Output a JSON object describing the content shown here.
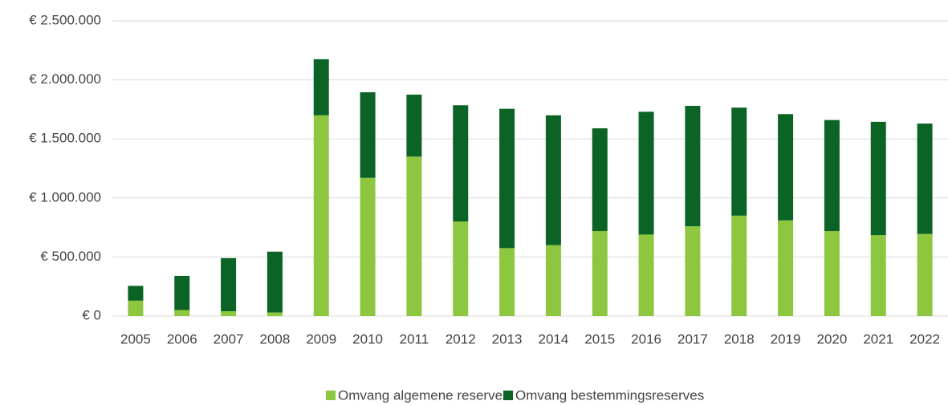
{
  "chart_data": {
    "type": "stacked_bar",
    "categories": [
      "2005",
      "2006",
      "2007",
      "2008",
      "2009",
      "2010",
      "2011",
      "2012",
      "2013",
      "2014",
      "2015",
      "2016",
      "2017",
      "2018",
      "2019",
      "2020",
      "2021",
      "2022"
    ],
    "series": [
      {
        "name": "Omvang algemene reserves",
        "color": "#8dc63f",
        "values": [
          130000,
          50000,
          40000,
          30000,
          1700000,
          1170000,
          1350000,
          800000,
          575000,
          600000,
          720000,
          690000,
          760000,
          850000,
          810000,
          720000,
          685000,
          695000
        ]
      },
      {
        "name": "Omvang bestemmingsreserves",
        "color": "#0b6325",
        "values": [
          125000,
          290000,
          450000,
          515000,
          475000,
          725000,
          525000,
          985000,
          1180000,
          1100000,
          870000,
          1040000,
          1020000,
          915000,
          900000,
          940000,
          960000,
          935000
        ]
      }
    ],
    "ylim": [
      0,
      2500000
    ],
    "yticks": [
      {
        "value": 0,
        "label": "€ 0"
      },
      {
        "value": 500000,
        "label": "€ 500.000"
      },
      {
        "value": 1000000,
        "label": "€ 1.000.000"
      },
      {
        "value": 1500000,
        "label": "€ 1.500.000"
      },
      {
        "value": 2000000,
        "label": "€ 2.000.000"
      },
      {
        "value": 2500000,
        "label": "€ 2.500.000"
      }
    ],
    "grid": true,
    "legend": "bottom"
  }
}
